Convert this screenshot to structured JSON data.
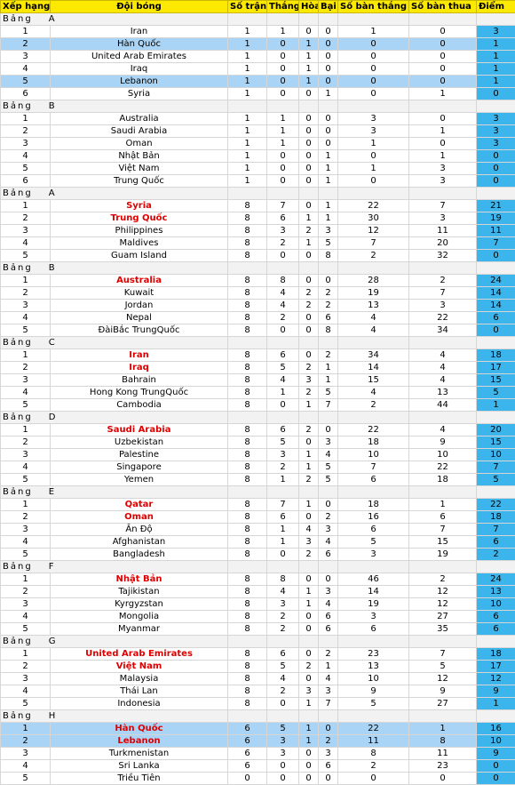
{
  "header": {
    "rank": "Xếp hạng",
    "team": "Đội bóng",
    "played": "Số trận",
    "won": "Thắng",
    "drawn": "Hòa",
    "lost": "Bại",
    "gf": "Số bàn thắng",
    "ga": "Số bàn thua",
    "pts": "Điểm"
  },
  "groups": [
    {
      "label": "Bảng",
      "letter": "A",
      "rows": [
        {
          "rank": "1",
          "team": "Iran",
          "p": "1",
          "w": "1",
          "d": "0",
          "l": "0",
          "gf": "1",
          "ga": "0",
          "pts": "3",
          "qualified": false,
          "highlight": false
        },
        {
          "rank": "2",
          "team": "Hàn Quốc",
          "p": "1",
          "w": "0",
          "d": "1",
          "l": "0",
          "gf": "0",
          "ga": "0",
          "pts": "1",
          "qualified": false,
          "highlight": true
        },
        {
          "rank": "3",
          "team": "United Arab Emirates",
          "p": "1",
          "w": "0",
          "d": "1",
          "l": "0",
          "gf": "0",
          "ga": "0",
          "pts": "1",
          "qualified": false,
          "highlight": false
        },
        {
          "rank": "4",
          "team": "Iraq",
          "p": "1",
          "w": "0",
          "d": "1",
          "l": "0",
          "gf": "0",
          "ga": "0",
          "pts": "1",
          "qualified": false,
          "highlight": false
        },
        {
          "rank": "5",
          "team": "Lebanon",
          "p": "1",
          "w": "0",
          "d": "1",
          "l": "0",
          "gf": "0",
          "ga": "0",
          "pts": "1",
          "qualified": false,
          "highlight": true
        },
        {
          "rank": "6",
          "team": "Syria",
          "p": "1",
          "w": "0",
          "d": "0",
          "l": "1",
          "gf": "0",
          "ga": "1",
          "pts": "0",
          "qualified": false,
          "highlight": false
        }
      ]
    },
    {
      "label": "Bảng",
      "letter": "B",
      "rows": [
        {
          "rank": "1",
          "team": "Australia",
          "p": "1",
          "w": "1",
          "d": "0",
          "l": "0",
          "gf": "3",
          "ga": "0",
          "pts": "3",
          "qualified": false,
          "highlight": false
        },
        {
          "rank": "2",
          "team": "Saudi Arabia",
          "p": "1",
          "w": "1",
          "d": "0",
          "l": "0",
          "gf": "3",
          "ga": "1",
          "pts": "3",
          "qualified": false,
          "highlight": false
        },
        {
          "rank": "3",
          "team": "Oman",
          "p": "1",
          "w": "1",
          "d": "0",
          "l": "0",
          "gf": "1",
          "ga": "0",
          "pts": "3",
          "qualified": false,
          "highlight": false
        },
        {
          "rank": "4",
          "team": "Nhật Bản",
          "p": "1",
          "w": "0",
          "d": "0",
          "l": "1",
          "gf": "0",
          "ga": "1",
          "pts": "0",
          "qualified": false,
          "highlight": false
        },
        {
          "rank": "5",
          "team": "Việt Nam",
          "p": "1",
          "w": "0",
          "d": "0",
          "l": "1",
          "gf": "1",
          "ga": "3",
          "pts": "0",
          "qualified": false,
          "highlight": false
        },
        {
          "rank": "6",
          "team": "Trung Quốc",
          "p": "1",
          "w": "0",
          "d": "0",
          "l": "1",
          "gf": "0",
          "ga": "3",
          "pts": "0",
          "qualified": false,
          "highlight": false
        }
      ]
    },
    {
      "label": "Bảng",
      "letter": "A",
      "rows": [
        {
          "rank": "1",
          "team": "Syria",
          "p": "8",
          "w": "7",
          "d": "0",
          "l": "1",
          "gf": "22",
          "ga": "7",
          "pts": "21",
          "qualified": true,
          "highlight": false
        },
        {
          "rank": "2",
          "team": "Trung Quốc",
          "p": "8",
          "w": "6",
          "d": "1",
          "l": "1",
          "gf": "30",
          "ga": "3",
          "pts": "19",
          "qualified": true,
          "highlight": false
        },
        {
          "rank": "3",
          "team": "Philippines",
          "p": "8",
          "w": "3",
          "d": "2",
          "l": "3",
          "gf": "12",
          "ga": "11",
          "pts": "11",
          "qualified": false,
          "highlight": false
        },
        {
          "rank": "4",
          "team": "Maldives",
          "p": "8",
          "w": "2",
          "d": "1",
          "l": "5",
          "gf": "7",
          "ga": "20",
          "pts": "7",
          "qualified": false,
          "highlight": false
        },
        {
          "rank": "5",
          "team": "Guam Island",
          "p": "8",
          "w": "0",
          "d": "0",
          "l": "8",
          "gf": "2",
          "ga": "32",
          "pts": "0",
          "qualified": false,
          "highlight": false
        }
      ]
    },
    {
      "label": "Bảng",
      "letter": "B",
      "rows": [
        {
          "rank": "1",
          "team": "Australia",
          "p": "8",
          "w": "8",
          "d": "0",
          "l": "0",
          "gf": "28",
          "ga": "2",
          "pts": "24",
          "qualified": true,
          "highlight": false
        },
        {
          "rank": "2",
          "team": "Kuwait",
          "p": "8",
          "w": "4",
          "d": "2",
          "l": "2",
          "gf": "19",
          "ga": "7",
          "pts": "14",
          "qualified": false,
          "highlight": false
        },
        {
          "rank": "3",
          "team": "Jordan",
          "p": "8",
          "w": "4",
          "d": "2",
          "l": "2",
          "gf": "13",
          "ga": "3",
          "pts": "14",
          "qualified": false,
          "highlight": false
        },
        {
          "rank": "4",
          "team": "Nepal",
          "p": "8",
          "w": "2",
          "d": "0",
          "l": "6",
          "gf": "4",
          "ga": "22",
          "pts": "6",
          "qualified": false,
          "highlight": false
        },
        {
          "rank": "5",
          "team": "ĐàiBắc TrungQuốc",
          "p": "8",
          "w": "0",
          "d": "0",
          "l": "8",
          "gf": "4",
          "ga": "34",
          "pts": "0",
          "qualified": false,
          "highlight": false
        }
      ]
    },
    {
      "label": "Bảng",
      "letter": "C",
      "rows": [
        {
          "rank": "1",
          "team": "Iran",
          "p": "8",
          "w": "6",
          "d": "0",
          "l": "2",
          "gf": "34",
          "ga": "4",
          "pts": "18",
          "qualified": true,
          "highlight": false
        },
        {
          "rank": "2",
          "team": "Iraq",
          "p": "8",
          "w": "5",
          "d": "2",
          "l": "1",
          "gf": "14",
          "ga": "4",
          "pts": "17",
          "qualified": true,
          "highlight": false
        },
        {
          "rank": "3",
          "team": "Bahrain",
          "p": "8",
          "w": "4",
          "d": "3",
          "l": "1",
          "gf": "15",
          "ga": "4",
          "pts": "15",
          "qualified": false,
          "highlight": false
        },
        {
          "rank": "4",
          "team": "Hong Kong TrungQuốc",
          "p": "8",
          "w": "1",
          "d": "2",
          "l": "5",
          "gf": "4",
          "ga": "13",
          "pts": "5",
          "qualified": false,
          "highlight": false
        },
        {
          "rank": "5",
          "team": "Cambodia",
          "p": "8",
          "w": "0",
          "d": "1",
          "l": "7",
          "gf": "2",
          "ga": "44",
          "pts": "1",
          "qualified": false,
          "highlight": false
        }
      ]
    },
    {
      "label": "Bảng",
      "letter": "D",
      "rows": [
        {
          "rank": "1",
          "team": "Saudi Arabia",
          "p": "8",
          "w": "6",
          "d": "2",
          "l": "0",
          "gf": "22",
          "ga": "4",
          "pts": "20",
          "qualified": true,
          "highlight": false
        },
        {
          "rank": "2",
          "team": "Uzbekistan",
          "p": "8",
          "w": "5",
          "d": "0",
          "l": "3",
          "gf": "18",
          "ga": "9",
          "pts": "15",
          "qualified": false,
          "highlight": false
        },
        {
          "rank": "3",
          "team": "Palestine",
          "p": "8",
          "w": "3",
          "d": "1",
          "l": "4",
          "gf": "10",
          "ga": "10",
          "pts": "10",
          "qualified": false,
          "highlight": false
        },
        {
          "rank": "4",
          "team": "Singapore",
          "p": "8",
          "w": "2",
          "d": "1",
          "l": "5",
          "gf": "7",
          "ga": "22",
          "pts": "7",
          "qualified": false,
          "highlight": false
        },
        {
          "rank": "5",
          "team": "Yemen",
          "p": "8",
          "w": "1",
          "d": "2",
          "l": "5",
          "gf": "6",
          "ga": "18",
          "pts": "5",
          "qualified": false,
          "highlight": false
        }
      ]
    },
    {
      "label": "Bảng",
      "letter": "E",
      "rows": [
        {
          "rank": "1",
          "team": "Qatar",
          "p": "8",
          "w": "7",
          "d": "1",
          "l": "0",
          "gf": "18",
          "ga": "1",
          "pts": "22",
          "qualified": true,
          "highlight": false
        },
        {
          "rank": "2",
          "team": "Oman",
          "p": "8",
          "w": "6",
          "d": "0",
          "l": "2",
          "gf": "16",
          "ga": "6",
          "pts": "18",
          "qualified": true,
          "highlight": false
        },
        {
          "rank": "3",
          "team": "Ấn Độ",
          "p": "8",
          "w": "1",
          "d": "4",
          "l": "3",
          "gf": "6",
          "ga": "7",
          "pts": "7",
          "qualified": false,
          "highlight": false
        },
        {
          "rank": "4",
          "team": "Afghanistan",
          "p": "8",
          "w": "1",
          "d": "3",
          "l": "4",
          "gf": "5",
          "ga": "15",
          "pts": "6",
          "qualified": false,
          "highlight": false
        },
        {
          "rank": "5",
          "team": "Bangladesh",
          "p": "8",
          "w": "0",
          "d": "2",
          "l": "6",
          "gf": "3",
          "ga": "19",
          "pts": "2",
          "qualified": false,
          "highlight": false
        }
      ]
    },
    {
      "label": "Bảng",
      "letter": "F",
      "rows": [
        {
          "rank": "1",
          "team": "Nhật Bản",
          "p": "8",
          "w": "8",
          "d": "0",
          "l": "0",
          "gf": "46",
          "ga": "2",
          "pts": "24",
          "qualified": true,
          "highlight": false
        },
        {
          "rank": "2",
          "team": "Tajikistan",
          "p": "8",
          "w": "4",
          "d": "1",
          "l": "3",
          "gf": "14",
          "ga": "12",
          "pts": "13",
          "qualified": false,
          "highlight": false
        },
        {
          "rank": "3",
          "team": "Kyrgyzstan",
          "p": "8",
          "w": "3",
          "d": "1",
          "l": "4",
          "gf": "19",
          "ga": "12",
          "pts": "10",
          "qualified": false,
          "highlight": false
        },
        {
          "rank": "4",
          "team": "Mongolia",
          "p": "8",
          "w": "2",
          "d": "0",
          "l": "6",
          "gf": "3",
          "ga": "27",
          "pts": "6",
          "qualified": false,
          "highlight": false
        },
        {
          "rank": "5",
          "team": "Myanmar",
          "p": "8",
          "w": "2",
          "d": "0",
          "l": "6",
          "gf": "6",
          "ga": "35",
          "pts": "6",
          "qualified": false,
          "highlight": false
        }
      ]
    },
    {
      "label": "Bảng",
      "letter": "G",
      "rows": [
        {
          "rank": "1",
          "team": "United Arab Emirates",
          "p": "8",
          "w": "6",
          "d": "0",
          "l": "2",
          "gf": "23",
          "ga": "7",
          "pts": "18",
          "qualified": true,
          "highlight": false
        },
        {
          "rank": "2",
          "team": "Việt Nam",
          "p": "8",
          "w": "5",
          "d": "2",
          "l": "1",
          "gf": "13",
          "ga": "5",
          "pts": "17",
          "qualified": true,
          "highlight": false
        },
        {
          "rank": "3",
          "team": "Malaysia",
          "p": "8",
          "w": "4",
          "d": "0",
          "l": "4",
          "gf": "10",
          "ga": "12",
          "pts": "12",
          "qualified": false,
          "highlight": false
        },
        {
          "rank": "4",
          "team": "Thái Lan",
          "p": "8",
          "w": "2",
          "d": "3",
          "l": "3",
          "gf": "9",
          "ga": "9",
          "pts": "9",
          "qualified": false,
          "highlight": false
        },
        {
          "rank": "5",
          "team": "Indonesia",
          "p": "8",
          "w": "0",
          "d": "1",
          "l": "7",
          "gf": "5",
          "ga": "27",
          "pts": "1",
          "qualified": false,
          "highlight": false
        }
      ]
    },
    {
      "label": "Bảng",
      "letter": "H",
      "rows": [
        {
          "rank": "1",
          "team": "Hàn Quốc",
          "p": "6",
          "w": "5",
          "d": "1",
          "l": "0",
          "gf": "22",
          "ga": "1",
          "pts": "16",
          "qualified": true,
          "highlight": true
        },
        {
          "rank": "2",
          "team": "Lebanon",
          "p": "6",
          "w": "3",
          "d": "1",
          "l": "2",
          "gf": "11",
          "ga": "8",
          "pts": "10",
          "qualified": true,
          "highlight": true
        },
        {
          "rank": "3",
          "team": "Turkmenistan",
          "p": "6",
          "w": "3",
          "d": "0",
          "l": "3",
          "gf": "8",
          "ga": "11",
          "pts": "9",
          "qualified": false,
          "highlight": false
        },
        {
          "rank": "4",
          "team": "Sri Lanka",
          "p": "6",
          "w": "0",
          "d": "0",
          "l": "6",
          "gf": "2",
          "ga": "23",
          "pts": "0",
          "qualified": false,
          "highlight": false
        },
        {
          "rank": "5",
          "team": "Triều Tiên",
          "p": "0",
          "w": "0",
          "d": "0",
          "l": "0",
          "gf": "0",
          "ga": "0",
          "pts": "0",
          "qualified": false,
          "highlight": false
        }
      ]
    }
  ],
  "colors": {
    "header_bg": "#fde900",
    "points_bg": "#3bb5ec",
    "highlight_bg": "#a9d4f5",
    "qualified_text": "#e00000"
  }
}
